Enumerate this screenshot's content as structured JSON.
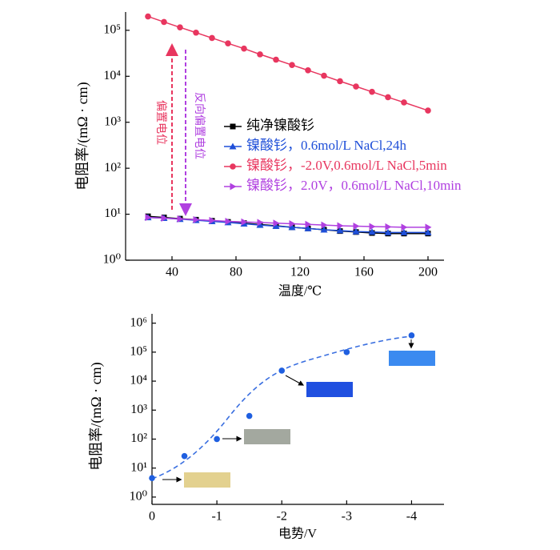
{
  "chart_data": [
    {
      "type": "line",
      "yscale": "log",
      "legend": "center",
      "xlabel": "温度/℃",
      "ylabel": "电阻率/(mΩ · cm)",
      "x": [
        25,
        35,
        45,
        55,
        65,
        75,
        85,
        95,
        105,
        115,
        125,
        135,
        145,
        155,
        165,
        175,
        185,
        200
      ],
      "xlim": [
        11,
        210
      ],
      "xticks": [
        40,
        80,
        120,
        160,
        200
      ],
      "ylim": [
        1,
        250000
      ],
      "yticks": [
        {
          "value": 1,
          "label": "10⁰"
        },
        {
          "value": 10,
          "label": "10¹"
        },
        {
          "value": 100,
          "label": "10²"
        },
        {
          "value": 1000,
          "label": "10³"
        },
        {
          "value": 10000,
          "label": "10⁴"
        },
        {
          "value": 100000,
          "label": "10⁵"
        }
      ],
      "series": [
        {
          "name": "纯净镍酸钐",
          "color": "#000000",
          "marker": "square",
          "values": [
            9,
            8.5,
            8,
            7.6,
            7.2,
            6.8,
            6.4,
            6,
            5.6,
            5.2,
            4.9,
            4.6,
            4.3,
            4.1,
            3.9,
            3.8,
            3.8,
            3.8
          ]
        },
        {
          "name": "镍酸钐，0.6mol/L NaCl,24h",
          "color": "#1f4fd8",
          "marker": "triangle",
          "values": [
            8.5,
            8.2,
            7.8,
            7.4,
            7,
            6.6,
            6.2,
            5.8,
            5.5,
            5.2,
            4.9,
            4.6,
            4.4,
            4.2,
            4.1,
            4,
            4,
            4
          ]
        },
        {
          "name": "镍酸钐，-2.0V,0.6mol/L NaCl,5min",
          "color": "#e8365f",
          "marker": "circle",
          "values": [
            200000,
            152000,
            116000,
            89000,
            68000,
            52000,
            40000,
            30000,
            23000,
            17600,
            13500,
            10300,
            7800,
            6000,
            4600,
            3500,
            2700,
            1800
          ]
        },
        {
          "name": "镍酸钐，2.0V，0.6mol/L NaCl,10min",
          "color": "#b040e0",
          "marker": "right-triangle",
          "values": [
            8.5,
            8.2,
            7.9,
            7.6,
            7.3,
            7,
            6.8,
            6.6,
            6.4,
            6.2,
            6,
            5.8,
            5.6,
            5.5,
            5.4,
            5.3,
            5.2,
            5.2
          ]
        }
      ],
      "annotations": [
        {
          "text": "偏置电位",
          "color": "#e8365f"
        },
        {
          "text": "反向偏置电位",
          "color": "#b040e0"
        }
      ]
    },
    {
      "type": "scatter",
      "yscale": "log",
      "xlabel": "电势/V",
      "ylabel": "电阻率/(mΩ · cm)",
      "x": [
        0,
        -0.5,
        -1,
        -1.5,
        -2,
        -3,
        -4
      ],
      "xlim": [
        0,
        -4.5
      ],
      "xticks": [
        0,
        -1,
        -2,
        -3,
        -4
      ],
      "ylim": [
        0.56,
        2100000
      ],
      "yticks": [
        {
          "value": 1,
          "label": "10⁰"
        },
        {
          "value": 10,
          "label": "10¹"
        },
        {
          "value": 100,
          "label": "10²"
        },
        {
          "value": 1000,
          "label": "10³"
        },
        {
          "value": 10000,
          "label": "10⁴"
        },
        {
          "value": 100000,
          "label": "10⁵"
        },
        {
          "value": 1000000,
          "label": "10⁶"
        }
      ],
      "color": "#1f5fe0",
      "values": [
        4.5,
        26,
        100,
        630,
        23000,
        100000,
        380000
      ]
    }
  ]
}
